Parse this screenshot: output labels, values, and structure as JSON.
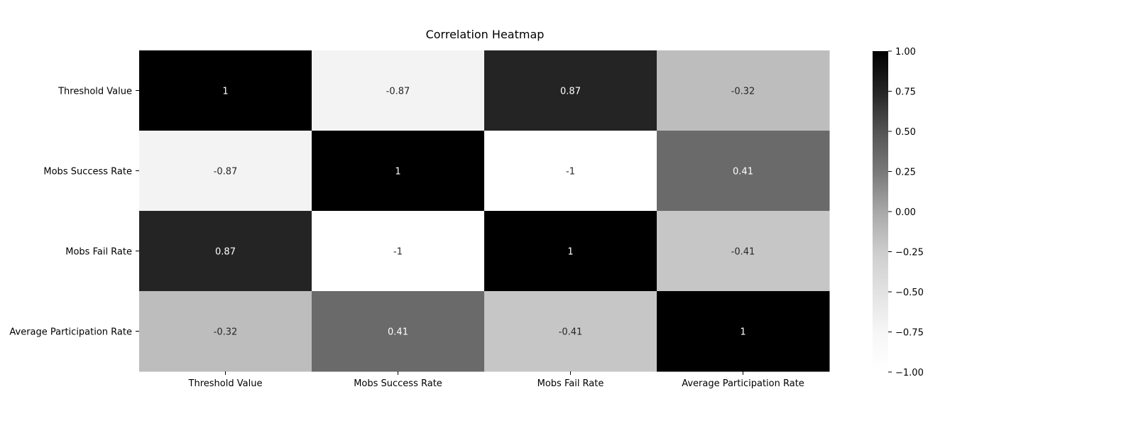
{
  "chart_data": {
    "type": "heatmap",
    "title": "Correlation Heatmap",
    "xlabel": "",
    "ylabel": "",
    "x_categories": [
      "Threshold Value",
      "Mobs Success Rate",
      "Mobs Fail Rate",
      "Average Participation Rate"
    ],
    "y_categories": [
      "Threshold Value",
      "Mobs Success Rate",
      "Mobs Fail Rate",
      "Average Participation Rate"
    ],
    "values": [
      [
        1,
        -0.87,
        0.87,
        -0.32
      ],
      [
        -0.87,
        1,
        -1,
        0.41
      ],
      [
        0.87,
        -1,
        1,
        -0.41
      ],
      [
        -0.32,
        0.41,
        -0.41,
        1
      ]
    ],
    "annotations": [
      [
        "1",
        "-0.87",
        "0.87",
        "-0.32"
      ],
      [
        "-0.87",
        "1",
        "-1",
        "0.41"
      ],
      [
        "0.87",
        "-1",
        "1",
        "-0.41"
      ],
      [
        "-0.32",
        "0.41",
        "-0.41",
        "1"
      ]
    ],
    "colorbar": {
      "range": [
        -1,
        1
      ],
      "ticks": [
        1.0,
        0.75,
        0.5,
        0.25,
        0.0,
        -0.25,
        -0.5,
        -0.75,
        -1.0
      ],
      "tick_labels": [
        "1.00",
        "0.75",
        "0.50",
        "0.25",
        "0.00",
        "−0.25",
        "−0.50",
        "−0.75",
        "−1.00"
      ],
      "colormap": "Greys",
      "low_color": "#ffffff",
      "high_color": "#000000"
    },
    "grid": false,
    "legend": "colorbar-right"
  }
}
